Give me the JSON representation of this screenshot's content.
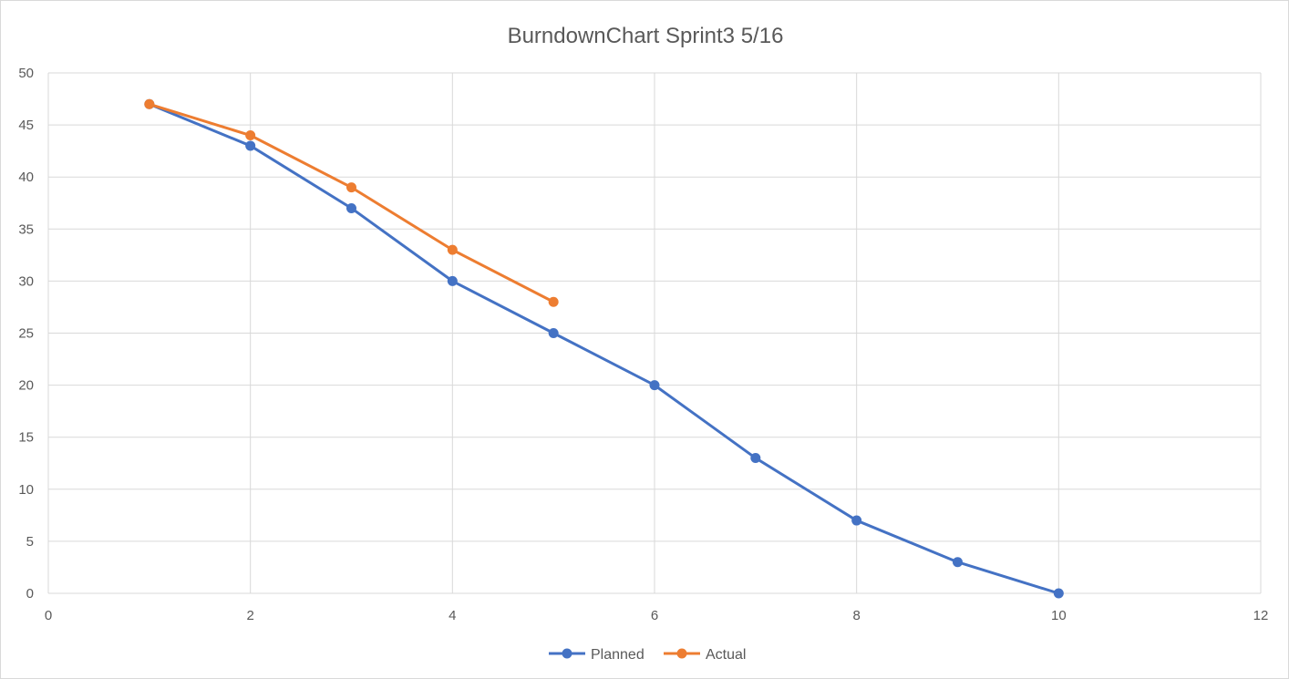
{
  "chart_data": {
    "type": "scatter",
    "title": "BurndownChart  Sprint3 5/16",
    "xlabel": "",
    "ylabel": "",
    "xlim": [
      0,
      12
    ],
    "ylim": [
      0,
      50
    ],
    "x_ticks": [
      0,
      2,
      4,
      6,
      8,
      10,
      12
    ],
    "y_ticks": [
      0,
      5,
      10,
      15,
      20,
      25,
      30,
      35,
      40,
      45,
      50
    ],
    "x_tick_labels": [
      "0",
      "2",
      "4",
      "6",
      "8",
      "10",
      "12"
    ],
    "y_tick_labels": [
      "0",
      "5",
      "10",
      "15",
      "20",
      "25",
      "30",
      "35",
      "40",
      "45",
      "50"
    ],
    "grid": true,
    "legend_position": "bottom",
    "series": [
      {
        "name": "Planned",
        "color": "#4472c4",
        "x": [
          1,
          2,
          3,
          4,
          5,
          6,
          7,
          8,
          9,
          10
        ],
        "y": [
          47,
          43,
          37,
          30,
          25,
          20,
          13,
          7,
          3,
          0
        ]
      },
      {
        "name": "Actual",
        "color": "#ed7d31",
        "x": [
          1,
          2,
          3,
          4,
          5
        ],
        "y": [
          47,
          44,
          39,
          33,
          28
        ]
      }
    ]
  }
}
